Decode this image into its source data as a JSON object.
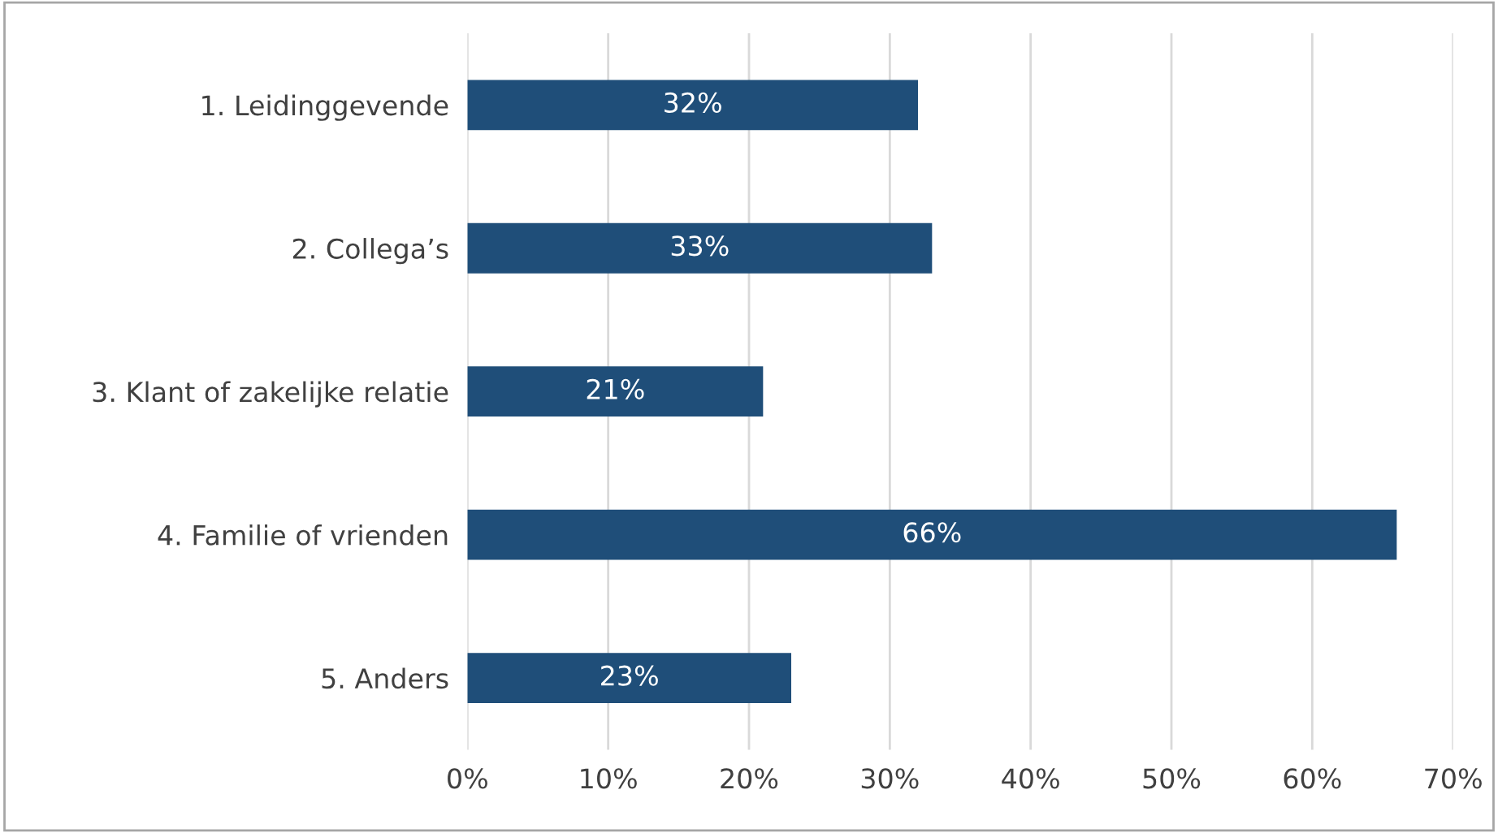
{
  "chart_data": {
    "type": "bar",
    "orientation": "horizontal",
    "categories": [
      "1. Leidinggevende",
      "2. Collega’s",
      "3. Klant of zakelijke relatie",
      "4. Familie of vrienden",
      "5. Anders"
    ],
    "values": [
      32,
      33,
      21,
      66,
      23
    ],
    "value_labels": [
      "32%",
      "33%",
      "21%",
      "66%",
      "23%"
    ],
    "color": "#1f4e79",
    "xlim": [
      0,
      70
    ],
    "xticks": [
      {
        "value": 0,
        "label": "0%"
      },
      {
        "value": 10,
        "label": "10%"
      },
      {
        "value": 20,
        "label": "20%"
      },
      {
        "value": 30,
        "label": "30%"
      },
      {
        "value": 40,
        "label": "40%"
      },
      {
        "value": 50,
        "label": "50%"
      },
      {
        "value": 60,
        "label": "60%"
      },
      {
        "value": 70,
        "label": "70%"
      }
    ],
    "grid": "x"
  }
}
